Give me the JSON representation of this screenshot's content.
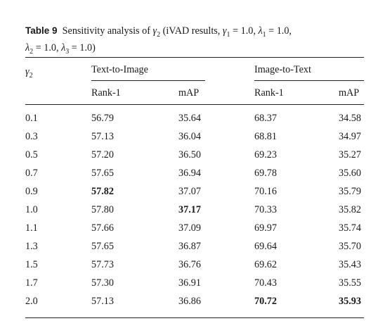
{
  "caption": {
    "label": "Table 9",
    "text": "Sensitivity analysis of γ2 (iVAD results, γ1 = 1.0, λ1 = 1.0, λ2 = 1.0, λ3 = 1.0)",
    "line1": "Sensitivity analysis of γ",
    "line1_rest": " (iVAD results, γ",
    "line1_rest2": " = 1.0, λ",
    "line1_rest3": " = 1.0,",
    "line2_a": "λ",
    "line2_b": " = 1.0, λ",
    "line2_c": " = 1.0)",
    "sub2": "2",
    "sub1": "1",
    "sub3": "3"
  },
  "table": {
    "param_header": "γ",
    "param_sub": "2",
    "group1": "Text-to-Image",
    "group2": "Image-to-Text",
    "columns": [
      "Rank-1",
      "mAP",
      "Rank-1",
      "mAP"
    ],
    "rows": [
      {
        "gamma": "0.1",
        "t2i_rank1": "56.79",
        "t2i_map": "35.64",
        "i2t_rank1": "68.37",
        "i2t_map": "34.58"
      },
      {
        "gamma": "0.3",
        "t2i_rank1": "57.13",
        "t2i_map": "36.04",
        "i2t_rank1": "68.81",
        "i2t_map": "34.97"
      },
      {
        "gamma": "0.5",
        "t2i_rank1": "57.20",
        "t2i_map": "36.50",
        "i2t_rank1": "69.23",
        "i2t_map": "35.27"
      },
      {
        "gamma": "0.7",
        "t2i_rank1": "57.65",
        "t2i_map": "36.94",
        "i2t_rank1": "69.78",
        "i2t_map": "35.60"
      },
      {
        "gamma": "0.9",
        "t2i_rank1": "57.82",
        "t2i_map": "37.07",
        "i2t_rank1": "70.16",
        "i2t_map": "35.79"
      },
      {
        "gamma": "1.0",
        "t2i_rank1": "57.80",
        "t2i_map": "37.17",
        "i2t_rank1": "70.33",
        "i2t_map": "35.82"
      },
      {
        "gamma": "1.1",
        "t2i_rank1": "57.66",
        "t2i_map": "37.09",
        "i2t_rank1": "69.97",
        "i2t_map": "35.74"
      },
      {
        "gamma": "1.3",
        "t2i_rank1": "57.65",
        "t2i_map": "36.87",
        "i2t_rank1": "69.64",
        "i2t_map": "35.70"
      },
      {
        "gamma": "1.5",
        "t2i_rank1": "57.73",
        "t2i_map": "36.76",
        "i2t_rank1": "69.62",
        "i2t_map": "35.43"
      },
      {
        "gamma": "1.7",
        "t2i_rank1": "57.30",
        "t2i_map": "36.91",
        "i2t_rank1": "70.43",
        "i2t_map": "35.55"
      },
      {
        "gamma": "2.0",
        "t2i_rank1": "57.13",
        "t2i_map": "36.86",
        "i2t_rank1": "70.72",
        "i2t_map": "35.93"
      }
    ],
    "bold_cells": [
      "4.t2i_rank1",
      "5.t2i_map",
      "10.i2t_rank1",
      "10.i2t_map"
    ]
  }
}
